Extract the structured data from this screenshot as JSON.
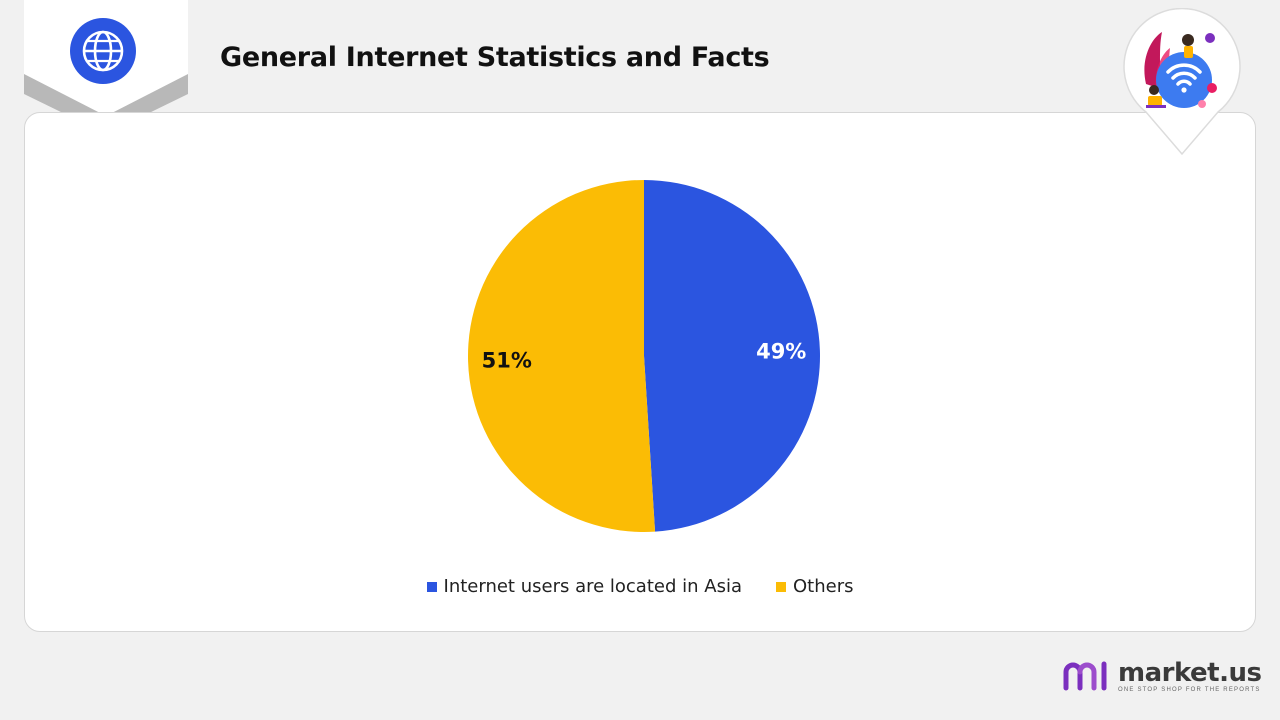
{
  "header": {
    "title": "General Internet Statistics and Facts",
    "icon": "globe-icon"
  },
  "colors": {
    "accent_blue": "#2b55e0",
    "accent_yellow": "#fbbc05",
    "brand_purple": "#7b2fbe"
  },
  "chart_data": {
    "type": "pie",
    "title": "",
    "slices": [
      {
        "label": "Internet users are located in Asia",
        "value": 49,
        "display": "49%",
        "color": "#2b55e0",
        "label_color": "#ffffff"
      },
      {
        "label": "Others",
        "value": 51,
        "display": "51%",
        "color": "#fbbc05",
        "label_color": "#111111"
      }
    ],
    "start_angle_deg": 0,
    "direction": "clockwise",
    "legend_position": "bottom"
  },
  "brand": {
    "name": "market.us",
    "tagline": "ONE STOP SHOP FOR THE REPORTS"
  }
}
